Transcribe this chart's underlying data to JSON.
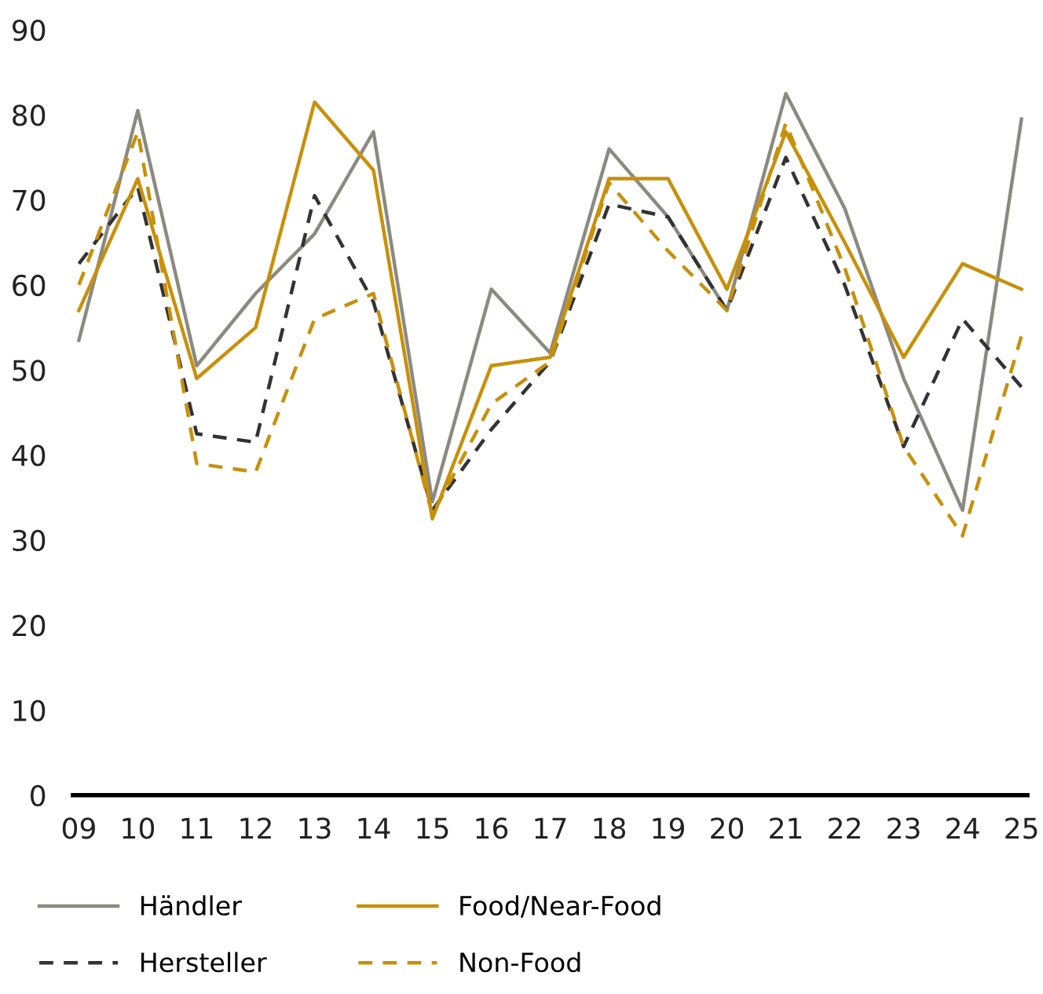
{
  "chart_data": {
    "type": "line",
    "categories": [
      "09",
      "10",
      "11",
      "12",
      "13",
      "14",
      "15",
      "16",
      "17",
      "18",
      "19",
      "20",
      "21",
      "22",
      "23",
      "24",
      "25"
    ],
    "series": [
      {
        "name": "Händler",
        "color": "#8c8a80",
        "line_style": "solid",
        "values": [
          53.5,
          80.5,
          50.5,
          59,
          66,
          78,
          34.5,
          59.5,
          52,
          76,
          68,
          57,
          82.5,
          69,
          49,
          33.5,
          79.5
        ]
      },
      {
        "name": "Hersteller",
        "color": "#333333",
        "line_style": "dashed",
        "values": [
          62.5,
          71.5,
          42.5,
          41.5,
          70.5,
          58,
          33.5,
          43,
          51,
          69.5,
          68,
          57,
          75,
          60,
          41,
          56,
          48
        ]
      },
      {
        "name": "Food/Near-Food",
        "color": "#c8900a",
        "line_style": "solid",
        "values": [
          57,
          72.5,
          49,
          55,
          81.5,
          73.5,
          32.5,
          50.5,
          51.5,
          72.5,
          72.5,
          59.5,
          78,
          65,
          51.5,
          62.5,
          59.5
        ]
      },
      {
        "name": "Non-Food",
        "color": "#c8900a",
        "line_style": "dashed",
        "values": [
          60,
          78,
          39,
          38,
          56,
          59,
          33,
          46,
          51,
          72,
          64,
          57,
          79,
          62,
          41,
          30.5,
          54
        ]
      }
    ],
    "ylim": [
      0,
      90
    ],
    "yticks": [
      0,
      10,
      20,
      30,
      40,
      50,
      60,
      70,
      80,
      90
    ],
    "grid": false,
    "legend": "bottom",
    "marker": "none"
  }
}
